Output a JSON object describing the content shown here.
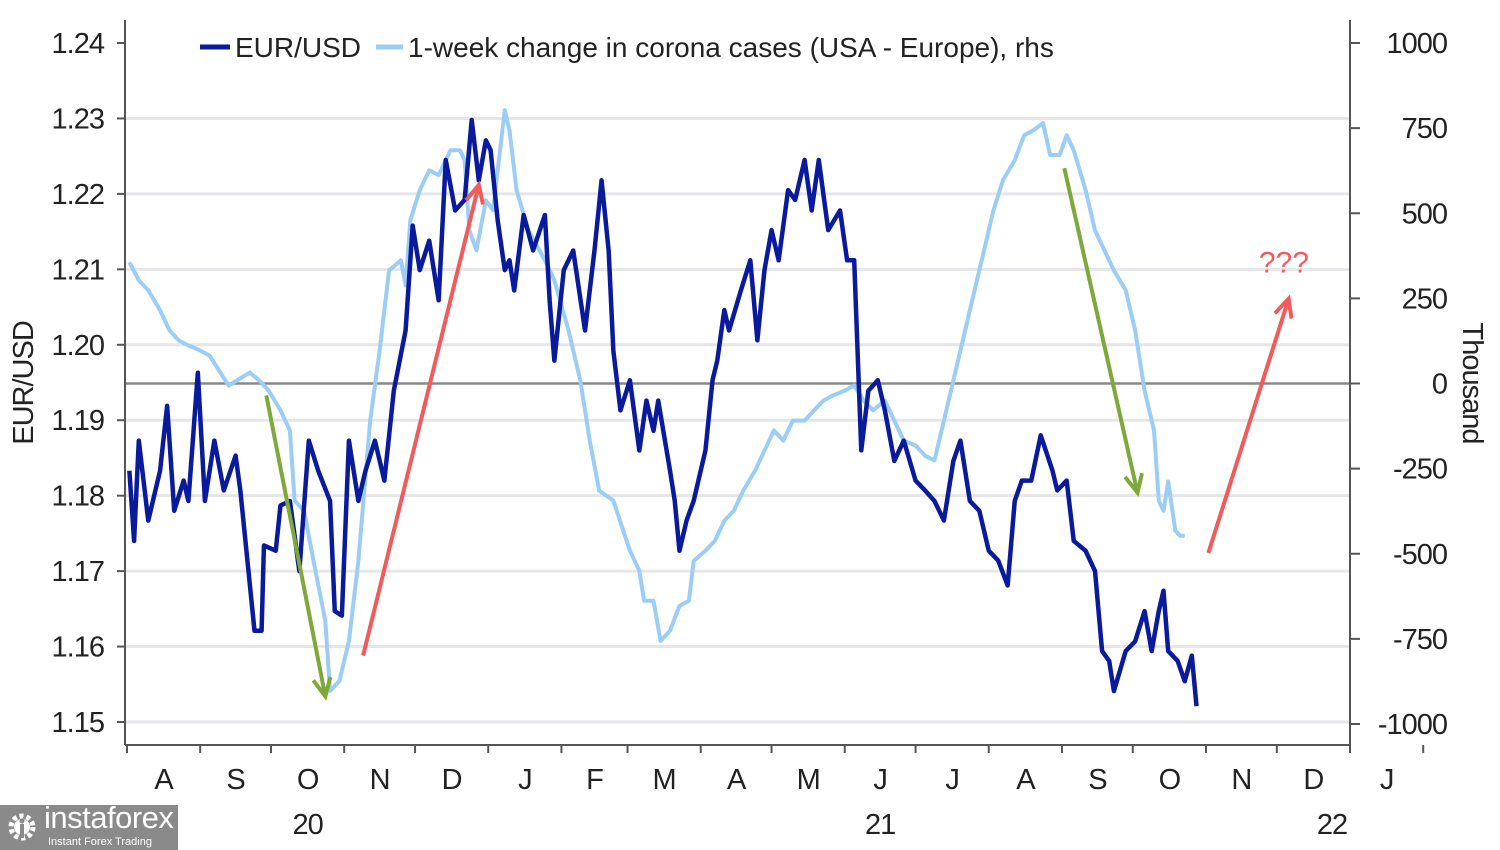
{
  "chart_data": {
    "type": "line",
    "title": "",
    "legend": {
      "placement": "top-left",
      "entries": [
        "EUR/USD",
        "1-week change in corona cases (USA - Europe), rhs"
      ]
    },
    "ylabel": "EUR/USD",
    "y2label": "Thousand",
    "ylim": [
      1.15,
      1.24
    ],
    "y2lim": [
      -1000,
      1000
    ],
    "xlim": [
      "2020-08-01",
      "2022-01-01"
    ],
    "yticks": [
      "1.24",
      "1.23",
      "1.22",
      "1.21",
      "1.20",
      "1.19",
      "1.18",
      "1.17",
      "1.16",
      "1.15"
    ],
    "y2ticks": [
      "1000",
      "750",
      "500",
      "250",
      "0",
      "-250",
      "-500",
      "-750",
      "-1000"
    ],
    "xtick_labels": [
      "A",
      "S",
      "O",
      "N",
      "D",
      "J",
      "F",
      "M",
      "A",
      "M",
      "J",
      "J",
      "A",
      "S",
      "O",
      "N",
      "D",
      "J"
    ],
    "year_labels": [
      {
        "label": "20",
        "month": "2020-10"
      },
      {
        "label": "21",
        "month": "2021-06"
      },
      {
        "label": "22",
        "month": "2022-01"
      }
    ],
    "grid": true,
    "zero_line_y2": 0,
    "colors": {
      "eurusd": "#0a1a9c",
      "corona": "#9ccdf5",
      "green_arrow": "#7fa83a",
      "red_arrow": "#f25b5b",
      "zero_line": "#888888",
      "grid": "#e6e6ea"
    },
    "series": [
      {
        "name": "EUR/USD",
        "axis": "left",
        "points": [
          [
            "2020-08-02",
            1.1833
          ],
          [
            "2020-08-04",
            1.174
          ],
          [
            "2020-08-06",
            1.1873
          ],
          [
            "2020-08-10",
            1.1767
          ],
          [
            "2020-08-15",
            1.1833
          ],
          [
            "2020-08-18",
            1.1919
          ],
          [
            "2020-08-21",
            1.178
          ],
          [
            "2020-08-25",
            1.182
          ],
          [
            "2020-08-27",
            1.1793
          ],
          [
            "2020-08-31",
            1.1963
          ],
          [
            "2020-09-03",
            1.1793
          ],
          [
            "2020-09-07",
            1.1873
          ],
          [
            "2020-09-11",
            1.1807
          ],
          [
            "2020-09-16",
            1.1853
          ],
          [
            "2020-09-18",
            1.1807
          ],
          [
            "2020-09-21",
            1.1714
          ],
          [
            "2020-09-24",
            1.1621
          ],
          [
            "2020-09-27",
            1.1621
          ],
          [
            "2020-09-28",
            1.1734
          ],
          [
            "2020-10-03",
            1.1727
          ],
          [
            "2020-10-05",
            1.1787
          ],
          [
            "2020-10-09",
            1.1793
          ],
          [
            "2020-10-13",
            1.17
          ],
          [
            "2020-10-17",
            1.1873
          ],
          [
            "2020-10-21",
            1.1833
          ],
          [
            "2020-10-26",
            1.1793
          ],
          [
            "2020-10-28",
            1.1647
          ],
          [
            "2020-10-31",
            1.1641
          ],
          [
            "2020-11-03",
            1.1873
          ],
          [
            "2020-11-07",
            1.1793
          ],
          [
            "2020-11-10",
            1.1833
          ],
          [
            "2020-11-14",
            1.1873
          ],
          [
            "2020-11-18",
            1.182
          ],
          [
            "2020-11-22",
            1.1939
          ],
          [
            "2020-11-27",
            1.2019
          ],
          [
            "2020-11-30",
            1.2158
          ],
          [
            "2020-12-03",
            1.2099
          ],
          [
            "2020-12-07",
            1.2138
          ],
          [
            "2020-12-11",
            1.2059
          ],
          [
            "2020-12-14",
            1.2245
          ],
          [
            "2020-12-18",
            1.2178
          ],
          [
            "2020-12-22",
            1.2192
          ],
          [
            "2020-12-25",
            1.2298
          ],
          [
            "2020-12-28",
            1.2218
          ],
          [
            "2020-12-31",
            1.2271
          ],
          [
            "2021-01-02",
            1.2258
          ],
          [
            "2021-01-05",
            1.2165
          ],
          [
            "2021-01-08",
            1.2099
          ],
          [
            "2021-01-10",
            1.2112
          ],
          [
            "2021-01-12",
            1.2072
          ],
          [
            "2021-01-16",
            1.2172
          ],
          [
            "2021-01-20",
            1.2125
          ],
          [
            "2021-01-25",
            1.2172
          ],
          [
            "2021-01-27",
            1.2059
          ],
          [
            "2021-01-29",
            1.1979
          ],
          [
            "2021-02-02",
            1.2099
          ],
          [
            "2021-02-06",
            1.2125
          ],
          [
            "2021-02-11",
            1.2019
          ],
          [
            "2021-02-15",
            1.2125
          ],
          [
            "2021-02-18",
            1.2218
          ],
          [
            "2021-02-21",
            1.2125
          ],
          [
            "2021-02-23",
            1.1992
          ],
          [
            "2021-02-26",
            1.1913
          ],
          [
            "2021-03-02",
            1.1953
          ],
          [
            "2021-03-06",
            1.186
          ],
          [
            "2021-03-09",
            1.1926
          ],
          [
            "2021-03-12",
            1.1886
          ],
          [
            "2021-03-14",
            1.1926
          ],
          [
            "2021-03-19",
            1.1833
          ],
          [
            "2021-03-21",
            1.1793
          ],
          [
            "2021-03-23",
            1.1727
          ],
          [
            "2021-03-26",
            1.1767
          ],
          [
            "2021-03-29",
            1.1793
          ],
          [
            "2021-04-03",
            1.186
          ],
          [
            "2021-04-06",
            1.1953
          ],
          [
            "2021-04-08",
            1.1979
          ],
          [
            "2021-04-11",
            1.2046
          ],
          [
            "2021-04-13",
            1.2019
          ],
          [
            "2021-04-18",
            1.2072
          ],
          [
            "2021-04-22",
            1.2112
          ],
          [
            "2021-04-25",
            1.2006
          ],
          [
            "2021-04-28",
            1.2099
          ],
          [
            "2021-05-01",
            1.2152
          ],
          [
            "2021-05-04",
            1.2112
          ],
          [
            "2021-05-08",
            1.2205
          ],
          [
            "2021-05-11",
            1.2192
          ],
          [
            "2021-05-15",
            1.2245
          ],
          [
            "2021-05-18",
            1.2178
          ],
          [
            "2021-05-21",
            1.2245
          ],
          [
            "2021-05-25",
            1.2152
          ],
          [
            "2021-05-30",
            1.2178
          ],
          [
            "2021-06-02",
            1.2112
          ],
          [
            "2021-06-05",
            1.2112
          ],
          [
            "2021-06-08",
            1.186
          ],
          [
            "2021-06-11",
            1.1939
          ],
          [
            "2021-06-15",
            1.1953
          ],
          [
            "2021-06-18",
            1.1913
          ],
          [
            "2021-06-22",
            1.1846
          ],
          [
            "2021-06-26",
            1.1873
          ],
          [
            "2021-07-01",
            1.182
          ],
          [
            "2021-07-05",
            1.1807
          ],
          [
            "2021-07-09",
            1.1793
          ],
          [
            "2021-07-13",
            1.1767
          ],
          [
            "2021-07-17",
            1.1846
          ],
          [
            "2021-07-20",
            1.1873
          ],
          [
            "2021-07-24",
            1.1793
          ],
          [
            "2021-07-28",
            1.178
          ],
          [
            "2021-08-01",
            1.1727
          ],
          [
            "2021-08-05",
            1.1714
          ],
          [
            "2021-08-09",
            1.1681
          ],
          [
            "2021-08-12",
            1.1793
          ],
          [
            "2021-08-15",
            1.182
          ],
          [
            "2021-08-19",
            1.182
          ],
          [
            "2021-08-23",
            1.188
          ],
          [
            "2021-08-28",
            1.1833
          ],
          [
            "2021-08-30",
            1.1807
          ],
          [
            "2021-09-03",
            1.182
          ],
          [
            "2021-09-06",
            1.174
          ],
          [
            "2021-09-11",
            1.1727
          ],
          [
            "2021-09-15",
            1.17
          ],
          [
            "2021-09-18",
            1.1594
          ],
          [
            "2021-09-21",
            1.1581
          ],
          [
            "2021-09-23",
            1.1541
          ],
          [
            "2021-09-28",
            1.1594
          ],
          [
            "2021-10-02",
            1.1607
          ],
          [
            "2021-10-06",
            1.1647
          ],
          [
            "2021-10-09",
            1.1594
          ],
          [
            "2021-10-12",
            1.1647
          ],
          [
            "2021-10-14",
            1.1674
          ],
          [
            "2021-10-16",
            1.1594
          ],
          [
            "2021-10-20",
            1.1581
          ],
          [
            "2021-10-23",
            1.1554
          ],
          [
            "2021-10-26",
            1.1588
          ],
          [
            "2021-10-28",
            1.1521
          ]
        ]
      },
      {
        "name": "1-week change in corona cases (USA - Europe), rhs",
        "axis": "right",
        "points": [
          [
            "2020-08-02",
            356
          ],
          [
            "2020-08-06",
            303
          ],
          [
            "2020-08-10",
            274
          ],
          [
            "2020-08-15",
            215
          ],
          [
            "2020-08-19",
            156
          ],
          [
            "2020-08-23",
            126
          ],
          [
            "2020-08-27",
            112
          ],
          [
            "2020-09-01",
            97
          ],
          [
            "2020-09-05",
            82
          ],
          [
            "2020-09-09",
            38
          ],
          [
            "2020-09-13",
            -6
          ],
          [
            "2020-09-18",
            15
          ],
          [
            "2020-09-22",
            32
          ],
          [
            "2020-09-26",
            9
          ],
          [
            "2020-09-30",
            -21
          ],
          [
            "2020-10-05",
            -79
          ],
          [
            "2020-10-09",
            -138
          ],
          [
            "2020-10-11",
            -344
          ],
          [
            "2020-10-15",
            -374
          ],
          [
            "2020-10-19",
            -521
          ],
          [
            "2020-10-24",
            -697
          ],
          [
            "2020-10-26",
            -903
          ],
          [
            "2020-10-30",
            -873
          ],
          [
            "2020-11-03",
            -756
          ],
          [
            "2020-11-07",
            -521
          ],
          [
            "2020-11-12",
            -109
          ],
          [
            "2020-11-16",
            97
          ],
          [
            "2020-11-20",
            332
          ],
          [
            "2020-11-25",
            362
          ],
          [
            "2020-11-27",
            288
          ],
          [
            "2020-11-29",
            479
          ],
          [
            "2020-12-03",
            568
          ],
          [
            "2020-12-07",
            626
          ],
          [
            "2020-12-11",
            612
          ],
          [
            "2020-12-16",
            685
          ],
          [
            "2020-12-20",
            685
          ],
          [
            "2020-12-22",
            656
          ],
          [
            "2020-12-24",
            450
          ],
          [
            "2020-12-27",
            391
          ],
          [
            "2020-12-31",
            538
          ],
          [
            "2021-01-03",
            509
          ],
          [
            "2021-01-06",
            685
          ],
          [
            "2021-01-08",
            803
          ],
          [
            "2021-01-10",
            744
          ],
          [
            "2021-01-13",
            568
          ],
          [
            "2021-01-18",
            450
          ],
          [
            "2021-01-25",
            362
          ],
          [
            "2021-01-29",
            303
          ],
          [
            "2021-02-04",
            156
          ],
          [
            "2021-02-09",
            9
          ],
          [
            "2021-02-13",
            -168
          ],
          [
            "2021-02-17",
            -315
          ],
          [
            "2021-02-23",
            -344
          ],
          [
            "2021-03-02",
            -491
          ],
          [
            "2021-03-06",
            -550
          ],
          [
            "2021-03-08",
            -638
          ],
          [
            "2021-03-12",
            -638
          ],
          [
            "2021-03-15",
            -756
          ],
          [
            "2021-03-19",
            -726
          ],
          [
            "2021-03-23",
            -653
          ],
          [
            "2021-03-27",
            -638
          ],
          [
            "2021-03-29",
            -521
          ],
          [
            "2021-04-03",
            -491
          ],
          [
            "2021-04-07",
            -462
          ],
          [
            "2021-04-11",
            -403
          ],
          [
            "2021-04-15",
            -374
          ],
          [
            "2021-04-19",
            -315
          ],
          [
            "2021-04-24",
            -256
          ],
          [
            "2021-04-28",
            -197
          ],
          [
            "2021-05-02",
            -138
          ],
          [
            "2021-05-06",
            -168
          ],
          [
            "2021-05-10",
            -109
          ],
          [
            "2021-05-15",
            -109
          ],
          [
            "2021-05-19",
            -79
          ],
          [
            "2021-05-23",
            -50
          ],
          [
            "2021-05-27",
            -35
          ],
          [
            "2021-06-01",
            -21
          ],
          [
            "2021-06-05",
            -6
          ],
          [
            "2021-06-09",
            -50
          ],
          [
            "2021-06-13",
            -79
          ],
          [
            "2021-06-18",
            -50
          ],
          [
            "2021-06-22",
            -109
          ],
          [
            "2021-06-26",
            -168
          ],
          [
            "2021-07-01",
            -182
          ],
          [
            "2021-07-05",
            -212
          ],
          [
            "2021-07-09",
            -226
          ],
          [
            "2021-07-13",
            -109
          ],
          [
            "2021-07-17",
            9
          ],
          [
            "2021-07-22",
            156
          ],
          [
            "2021-07-26",
            274
          ],
          [
            "2021-07-30",
            391
          ],
          [
            "2021-08-03",
            509
          ],
          [
            "2021-08-07",
            597
          ],
          [
            "2021-08-12",
            656
          ],
          [
            "2021-08-16",
            729
          ],
          [
            "2021-08-20",
            744
          ],
          [
            "2021-08-24",
            765
          ],
          [
            "2021-08-27",
            671
          ],
          [
            "2021-08-31",
            671
          ],
          [
            "2021-09-03",
            729
          ],
          [
            "2021-09-06",
            685
          ],
          [
            "2021-09-11",
            568
          ],
          [
            "2021-09-15",
            450
          ],
          [
            "2021-09-19",
            391
          ],
          [
            "2021-09-23",
            332
          ],
          [
            "2021-09-28",
            274
          ],
          [
            "2021-10-02",
            156
          ],
          [
            "2021-10-06",
            -21
          ],
          [
            "2021-10-10",
            -138
          ],
          [
            "2021-10-12",
            -344
          ],
          [
            "2021-10-14",
            -374
          ],
          [
            "2021-10-16",
            -288
          ],
          [
            "2021-10-19",
            -432
          ],
          [
            "2021-10-21",
            -447
          ],
          [
            "2021-10-23",
            -447
          ]
        ]
      }
    ],
    "annotations": {
      "arrows": [
        {
          "color": "green",
          "from": [
            "2020-09-29",
            1.1933
          ],
          "to": [
            "2020-10-24",
            1.1534
          ]
        },
        {
          "color": "red",
          "from": [
            "2020-11-09",
            1.1588
          ],
          "to": [
            "2020-12-28",
            1.2212
          ]
        },
        {
          "color": "green",
          "from": [
            "2021-09-02",
            1.2234
          ],
          "to": [
            "2021-10-03",
            1.1804
          ]
        },
        {
          "color": "red",
          "from": [
            "2021-11-02",
            1.1724
          ],
          "to": [
            "2021-12-06",
            1.2061
          ]
        }
      ],
      "text": {
        "label": "???",
        "at": [
          "2021-12-04",
          1.2112
        ]
      }
    }
  },
  "watermark": {
    "brand": "instaforex",
    "tagline": "Instant Forex Trading"
  }
}
